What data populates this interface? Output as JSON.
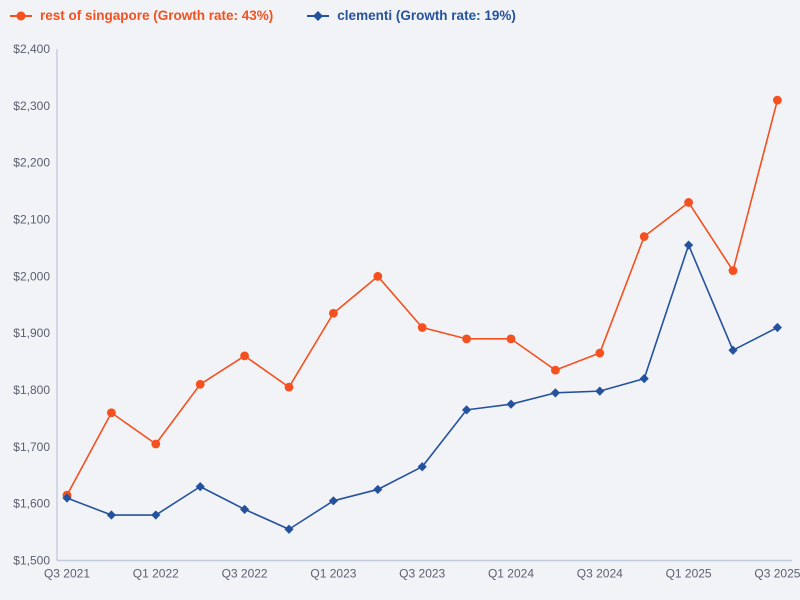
{
  "page": {
    "background": "#F2F3F6"
  },
  "legend": {
    "position": "top-left",
    "items": [
      {
        "id": "rest-of-singapore",
        "label": "rest of singapore (Growth rate: 43%)",
        "color": "#F5501F",
        "marker": "circle"
      },
      {
        "id": "clementi",
        "label": "clementi (Growth rate: 19%)",
        "color": "#24529E",
        "marker": "diamond"
      }
    ]
  },
  "axes": {
    "line_color": "#C2CBDE",
    "tick_label_color": "#5A6070"
  },
  "chart_data": {
    "type": "line",
    "title": "",
    "xlabel": "",
    "ylabel": "",
    "grid": false,
    "legend_position": "top-left",
    "categories": [
      "Q3 2021",
      "Q4 2021",
      "Q1 2022",
      "Q2 2022",
      "Q3 2022",
      "Q4 2022",
      "Q1 2023",
      "Q2 2023",
      "Q3 2023",
      "Q4 2023",
      "Q1 2024",
      "Q2 2024",
      "Q3 2024",
      "Q4 2024",
      "Q1 2025",
      "Q2 2025",
      "Q3 2025"
    ],
    "x_tick_labels": [
      "Q3 2021",
      "Q1 2022",
      "Q3 2022",
      "Q1 2023",
      "Q3 2023",
      "Q1 2024",
      "Q3 2024",
      "Q1 2025",
      "Q3 2025"
    ],
    "x_tick_every": 2,
    "ylim": [
      1500,
      2400
    ],
    "y_ticks": [
      1500,
      1600,
      1700,
      1800,
      1900,
      2000,
      2100,
      2200,
      2300,
      2400
    ],
    "y_tick_labels": [
      "$1,500",
      "$1,600",
      "$1,700",
      "$1,800",
      "$1,900",
      "$2,000",
      "$2,100",
      "$2,200",
      "$2,300",
      "$2,400"
    ],
    "series": [
      {
        "name": "rest of singapore",
        "growth_rate": "43%",
        "color": "#F5501F",
        "marker": "circle",
        "values": [
          1615,
          1760,
          1705,
          1810,
          1860,
          1805,
          1935,
          2000,
          1910,
          1890,
          1890,
          1835,
          1865,
          2070,
          2130,
          2010,
          2310
        ]
      },
      {
        "name": "clementi",
        "growth_rate": "19%",
        "color": "#24529E",
        "marker": "diamond",
        "values": [
          1610,
          1580,
          1580,
          1630,
          1590,
          1555,
          1605,
          1625,
          1665,
          1765,
          1775,
          1795,
          1798,
          1820,
          2055,
          1870,
          1910
        ]
      }
    ]
  }
}
